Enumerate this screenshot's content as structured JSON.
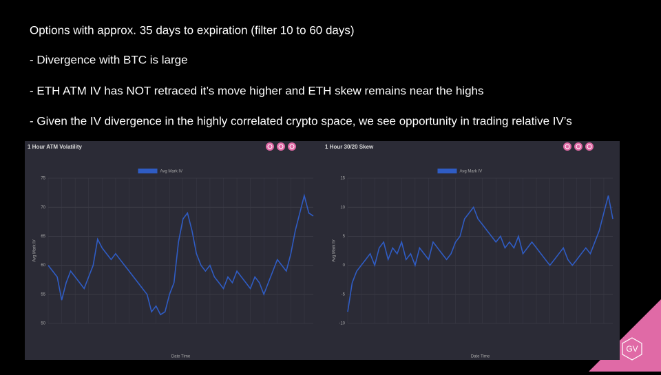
{
  "slide": {
    "heading": "Options with approx. 35 days to expiration (filter 10 to 60 days)",
    "bullets": [
      "- Divergence with BTC is large",
      "- ETH ATM IV has NOT retraced it’s move higher and ETH skew remains near the highs",
      "- Given the IV divergence in the highly  correlated crypto space, we see  opportunity in trading relative IV’s"
    ],
    "logo": "GV"
  },
  "chart_data": [
    {
      "type": "line",
      "title": "1 Hour ATM Volatility",
      "x_label": "Date Time",
      "y_label": "Avg Mark IV",
      "grid": true,
      "legend": "top",
      "categories": [
        null,
        null,
        null,
        null,
        null,
        null,
        null,
        null,
        null,
        null,
        null,
        null,
        null,
        null,
        null,
        null,
        null,
        null,
        null,
        null,
        null,
        null,
        null,
        null,
        null,
        null,
        null,
        null,
        null,
        null,
        null,
        null,
        null,
        null,
        null,
        null,
        null,
        null,
        null,
        null,
        null,
        null,
        null,
        null,
        null,
        null,
        null,
        null,
        null,
        null,
        null,
        null,
        null,
        null,
        null,
        null,
        null,
        null,
        null,
        null
      ],
      "series": [
        {
          "name": "Avg Mark IV",
          "color": "#2f5cc4",
          "values": [
            60,
            59,
            58,
            54,
            57,
            59,
            58,
            57,
            56,
            58,
            60,
            64.5,
            63,
            62,
            61,
            62,
            61,
            60,
            59,
            58,
            57,
            56,
            55,
            52,
            53,
            51.5,
            52,
            55,
            57,
            64,
            68,
            69,
            66,
            62,
            60,
            59,
            60,
            58,
            57,
            56,
            58,
            57,
            59,
            58,
            57,
            56,
            58,
            57,
            55,
            57,
            59,
            61,
            60,
            59,
            62,
            66,
            69,
            72,
            69,
            68.5
          ]
        }
      ],
      "ylim": [
        50,
        75
      ],
      "yticks": [
        50,
        55,
        60,
        65,
        70,
        75
      ]
    },
    {
      "type": "line",
      "title": "1 Hour 30/20 Skew",
      "x_label": "Date Time",
      "y_label": "Avg Mark IV",
      "grid": true,
      "legend": "top",
      "categories": [
        null,
        null,
        null,
        null,
        null,
        null,
        null,
        null,
        null,
        null,
        null,
        null,
        null,
        null,
        null,
        null,
        null,
        null,
        null,
        null,
        null,
        null,
        null,
        null,
        null,
        null,
        null,
        null,
        null,
        null,
        null,
        null,
        null,
        null,
        null,
        null,
        null,
        null,
        null,
        null,
        null,
        null,
        null,
        null,
        null,
        null,
        null,
        null,
        null,
        null,
        null,
        null,
        null,
        null,
        null,
        null,
        null,
        null,
        null,
        null
      ],
      "series": [
        {
          "name": "Avg Mark IV",
          "color": "#2f5cc4",
          "values": [
            -8,
            -3,
            -1,
            0,
            1,
            2,
            0,
            3,
            4,
            1,
            3,
            2,
            4,
            1,
            2,
            0,
            3,
            2,
            1,
            4,
            3,
            2,
            1,
            2,
            4,
            5,
            8,
            9,
            10,
            8,
            7,
            6,
            5,
            4,
            5,
            3,
            4,
            3,
            5,
            2,
            3,
            4,
            3,
            2,
            1,
            0,
            1,
            2,
            3,
            1,
            0,
            1,
            2,
            3,
            2,
            4,
            6,
            9,
            12,
            8
          ]
        }
      ],
      "ylim": [
        -10,
        15
      ],
      "yticks": [
        -10,
        -5,
        0,
        5,
        10,
        15
      ]
    }
  ]
}
